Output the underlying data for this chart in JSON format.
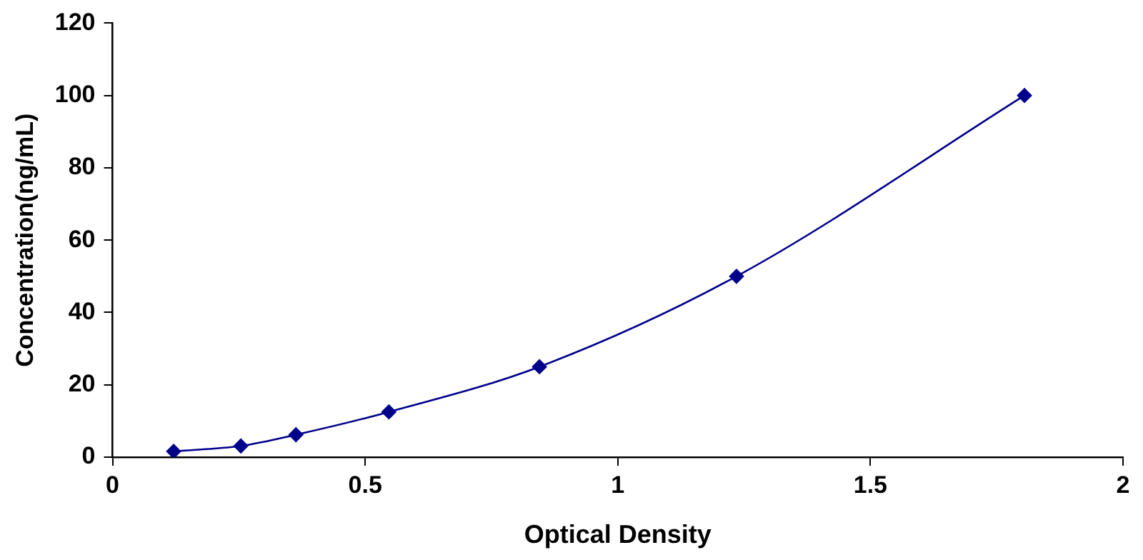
{
  "chart_data": {
    "type": "line",
    "xlabel": "Optical Density",
    "ylabel": "Concentration(ng/mL)",
    "x": [
      0.121,
      0.254,
      0.363,
      0.547,
      0.845,
      1.235,
      1.805
    ],
    "series": [
      {
        "color": "#00008b",
        "values": [
          1.6,
          3.1,
          6.2,
          12.5,
          25,
          50,
          100
        ]
      }
    ],
    "xlim": [
      0,
      2
    ],
    "xticks": [
      0,
      0.5,
      1,
      1.5,
      2
    ],
    "ylim": [
      0,
      120
    ],
    "yticks": [
      0,
      20,
      40,
      60,
      80,
      100,
      120
    ],
    "grid": false,
    "legend": false,
    "marker": "diamond",
    "line_style": "solid"
  }
}
